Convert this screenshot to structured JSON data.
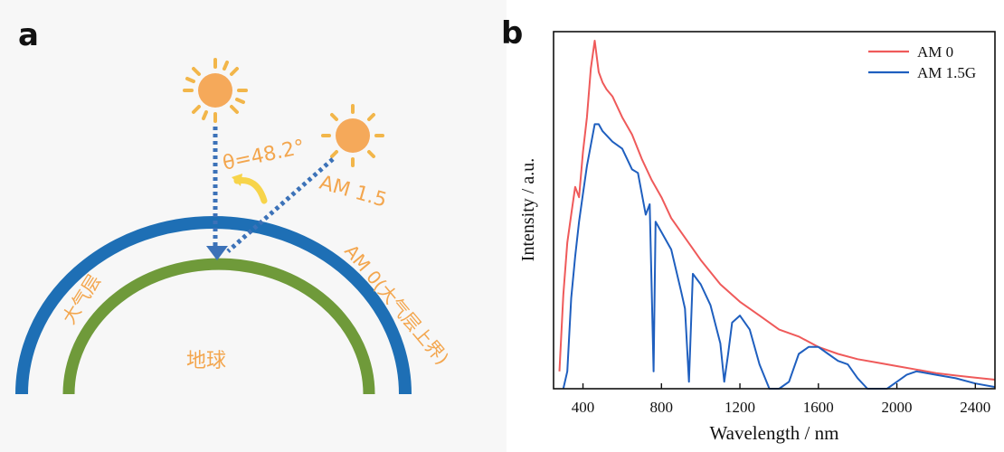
{
  "panel_a": {
    "label": "a",
    "angle_label": "θ=48.2°",
    "am15_label": "AM 1.5",
    "am0_label": "AM 0(大气层上界)",
    "atmosphere_label": "大气层",
    "earth_label": "地球",
    "colors": {
      "sun": "#f5a95a",
      "sun_rays": "#f2b64a",
      "atmosphere": "#1e6fb5",
      "earth": "#6f9a3a",
      "label_text": "#f3a64e",
      "arrow": "#3c72b8"
    }
  },
  "panel_b": {
    "label": "b"
  },
  "chart_data": {
    "type": "line",
    "title": "",
    "xlabel": "Wavelength / nm",
    "ylabel": "Intensity / a.u.",
    "xlim": [
      250,
      2500
    ],
    "ylim": [
      0,
      1
    ],
    "xticks": [
      400,
      800,
      1200,
      1600,
      2000,
      2400
    ],
    "legend_position": "top-right",
    "series": [
      {
        "name": "AM 0",
        "color": "#ef5a5a",
        "x": [
          280,
          300,
          320,
          340,
          360,
          380,
          400,
          420,
          440,
          460,
          480,
          500,
          520,
          550,
          600,
          650,
          700,
          750,
          800,
          850,
          900,
          950,
          1000,
          1100,
          1200,
          1300,
          1400,
          1500,
          1600,
          1700,
          1800,
          1900,
          2000,
          2100,
          2200,
          2300,
          2400,
          2500
        ],
        "y": [
          0.05,
          0.27,
          0.42,
          0.5,
          0.58,
          0.55,
          0.68,
          0.78,
          0.92,
          1.0,
          0.91,
          0.88,
          0.86,
          0.84,
          0.78,
          0.73,
          0.66,
          0.6,
          0.55,
          0.49,
          0.45,
          0.41,
          0.37,
          0.3,
          0.25,
          0.21,
          0.17,
          0.15,
          0.12,
          0.1,
          0.085,
          0.075,
          0.065,
          0.055,
          0.045,
          0.038,
          0.032,
          0.026
        ]
      },
      {
        "name": "AM 1.5G",
        "color": "#1f5fbf",
        "x": [
          300,
          320,
          340,
          360,
          380,
          400,
          420,
          440,
          460,
          480,
          500,
          550,
          600,
          650,
          680,
          700,
          720,
          740,
          760,
          770,
          780,
          800,
          850,
          900,
          920,
          940,
          960,
          1000,
          1050,
          1100,
          1120,
          1140,
          1160,
          1200,
          1250,
          1300,
          1350,
          1400,
          1450,
          1500,
          1550,
          1600,
          1650,
          1700,
          1750,
          1800,
          1850,
          1900,
          1950,
          2000,
          2050,
          2100,
          2200,
          2300,
          2400,
          2500
        ],
        "y": [
          0.0,
          0.05,
          0.26,
          0.38,
          0.48,
          0.56,
          0.64,
          0.7,
          0.76,
          0.76,
          0.74,
          0.71,
          0.69,
          0.63,
          0.62,
          0.56,
          0.5,
          0.53,
          0.05,
          0.48,
          0.47,
          0.45,
          0.4,
          0.28,
          0.23,
          0.02,
          0.33,
          0.3,
          0.24,
          0.13,
          0.02,
          0.1,
          0.19,
          0.21,
          0.17,
          0.07,
          0.0,
          0.0,
          0.02,
          0.1,
          0.12,
          0.12,
          0.1,
          0.08,
          0.07,
          0.03,
          0.0,
          0.0,
          0.0,
          0.02,
          0.04,
          0.05,
          0.04,
          0.03,
          0.015,
          0.005
        ]
      }
    ]
  }
}
